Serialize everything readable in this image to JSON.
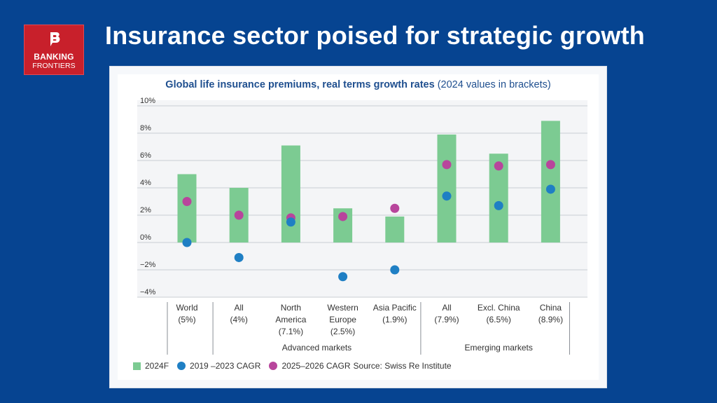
{
  "header": {
    "headline": "Insurance sector poised for strategic growth",
    "logo_line1": "BANKING",
    "logo_line2": "FRONTIERS"
  },
  "colors": {
    "background": "#064491",
    "bar": "#7ccb92",
    "series_2019_2023": "#1f7fc4",
    "series_2025_2026": "#b8459c"
  },
  "chart_data": {
    "type": "bar",
    "title": "Global life insurance premiums, real terms growth rates",
    "subtitle": "(2024 values in brackets)",
    "ylim": [
      -4,
      10
    ],
    "yticks": [
      "10%",
      "8%",
      "6%",
      "4%",
      "2%",
      "0%",
      "−2%",
      "−4%"
    ],
    "grid": true,
    "legend_position": "bottom-left",
    "source": "Source: Swiss Re Institute",
    "categories": [
      {
        "lines": [
          "World",
          "(5%)"
        ]
      },
      {
        "lines": [
          "All",
          "(4%)"
        ]
      },
      {
        "lines": [
          "North",
          "America",
          "(7.1%)"
        ]
      },
      {
        "lines": [
          "Western",
          "Europe",
          "(2.5%)"
        ]
      },
      {
        "lines": [
          "Asia Pacific",
          "(1.9%)"
        ]
      },
      {
        "lines": [
          "All",
          "(7.9%)"
        ]
      },
      {
        "lines": [
          "Excl. China",
          "(6.5%)"
        ]
      },
      {
        "lines": [
          "China",
          "(8.9%)"
        ]
      }
    ],
    "groups": [
      {
        "label": "Advanced markets",
        "from": 1,
        "to": 4
      },
      {
        "label": "Emerging markets",
        "from": 5,
        "to": 7
      }
    ],
    "series": [
      {
        "name": "2024F",
        "kind": "bar",
        "values": [
          5.0,
          4.0,
          7.1,
          2.5,
          1.9,
          7.9,
          6.5,
          8.9
        ]
      },
      {
        "name": "2019 –2023 CAGR",
        "kind": "dot",
        "values": [
          0.0,
          -1.1,
          1.5,
          -2.5,
          -2.0,
          3.4,
          2.7,
          3.9
        ]
      },
      {
        "name": "2025–2026 CAGR",
        "kind": "dot",
        "values": [
          3.0,
          2.0,
          1.8,
          1.9,
          2.5,
          5.7,
          5.6,
          5.7
        ]
      }
    ]
  }
}
